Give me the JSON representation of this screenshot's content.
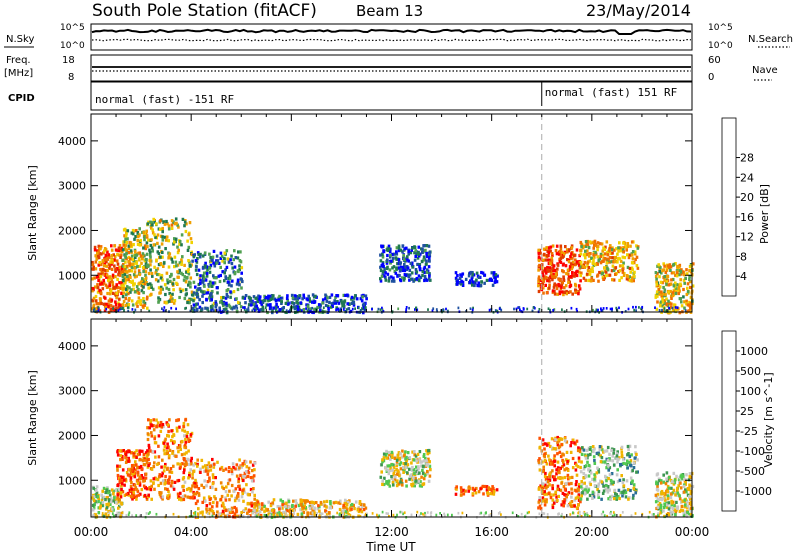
{
  "header": {
    "station": "South Pole Station (fitACF)",
    "beam": "Beam 13",
    "date": "23/May/2014"
  },
  "params": {
    "nsky_label": "N.Sky",
    "nsearch_label": "N.Search",
    "left_ticks": [
      "10^5",
      "10^0"
    ],
    "right_ticks": [
      "10^5",
      "10^0"
    ],
    "freq_label_1": "Freq.",
    "freq_label_2": "[MHz]",
    "freq_ticks": [
      "18",
      "8"
    ],
    "nave_label": "Nave",
    "nave_ticks": [
      "60",
      "0"
    ],
    "cpid_label": "CPID",
    "cpid_segments": [
      "normal (fast) -151 RF",
      "normal (fast) 151 RF"
    ],
    "cpid_switch_hour": 18
  },
  "colors": {
    "power": [
      "#0000ff",
      "#1e50a0",
      "#1e7850",
      "#50a050",
      "#f0d200",
      "#f0a000",
      "#f06e00",
      "#e03c00",
      "#ff0000"
    ],
    "velocity": [
      "#ff0000",
      "#ff5000",
      "#f08200",
      "#f0b400",
      "#c8c8c8",
      "#50c850",
      "#3c9650",
      "#286e96",
      "#0028b4"
    ]
  },
  "chart_data": [
    {
      "type": "heatmap",
      "panel": "power",
      "x_axis": {
        "range_hours": [
          0,
          24
        ],
        "tick_labels": [
          "00:00",
          "04:00",
          "08:00",
          "12:00",
          "16:00",
          "20:00",
          "00:00"
        ],
        "label": "Time UT"
      },
      "y_axis": {
        "range_km": [
          180,
          4600
        ],
        "tick_labels": [
          "1000",
          "2000",
          "3000",
          "4000"
        ],
        "label": "Slant Range [km]"
      },
      "colorbar": {
        "label": "Power [dB]",
        "range": [
          0,
          32
        ],
        "tick_labels": [
          "4",
          "8",
          "12",
          "16",
          "20",
          "24",
          "28"
        ]
      },
      "regions": [
        {
          "t": [
            0.0,
            1.2
          ],
          "r": [
            200,
            1700
          ],
          "level": 0.75
        },
        {
          "t": [
            1.2,
            2.2
          ],
          "r": [
            300,
            2100
          ],
          "level": 0.5
        },
        {
          "t": [
            2.2,
            4.0
          ],
          "r": [
            400,
            2300
          ],
          "level": 0.45
        },
        {
          "t": [
            4.0,
            6.0
          ],
          "r": [
            200,
            1600
          ],
          "level": 0.25
        },
        {
          "t": [
            6.0,
            11.0
          ],
          "r": [
            200,
            600
          ],
          "level": 0.15
        },
        {
          "t": [
            11.5,
            13.5
          ],
          "r": [
            900,
            1700
          ],
          "level": 0.15
        },
        {
          "t": [
            14.5,
            16.2
          ],
          "r": [
            800,
            1100
          ],
          "level": 0.1
        },
        {
          "t": [
            17.8,
            19.5
          ],
          "r": [
            600,
            1700
          ],
          "level": 0.8
        },
        {
          "t": [
            19.5,
            21.8
          ],
          "r": [
            900,
            1800
          ],
          "level": 0.6
        },
        {
          "t": [
            22.5,
            24.0
          ],
          "r": [
            200,
            1300
          ],
          "level": 0.55
        }
      ]
    },
    {
      "type": "heatmap",
      "panel": "velocity",
      "x_axis": {
        "range_hours": [
          0,
          24
        ],
        "tick_labels": [
          "00:00",
          "04:00",
          "08:00",
          "12:00",
          "16:00",
          "20:00",
          "00:00"
        ],
        "label": "Time UT"
      },
      "y_axis": {
        "range_km": [
          180,
          4600
        ],
        "tick_labels": [
          "1000",
          "2000",
          "3000",
          "4000"
        ],
        "label": "Slant Range [km]"
      },
      "colorbar": {
        "label": "Velocity [m s^-1]",
        "range": [
          -1500,
          1500
        ],
        "tick_labels": [
          "-1000",
          "-500",
          "-100",
          "-25",
          "25",
          "100",
          "500",
          "1000"
        ]
      },
      "regions": [
        {
          "t": [
            0.0,
            1.2
          ],
          "r": [
            200,
            900
          ],
          "level": 0.55
        },
        {
          "t": [
            1.0,
            2.2
          ],
          "r": [
            600,
            1700
          ],
          "level": 0.2
        },
        {
          "t": [
            2.2,
            4.0
          ],
          "r": [
            600,
            2400
          ],
          "level": 0.25
        },
        {
          "t": [
            4.0,
            6.5
          ],
          "r": [
            200,
            1500
          ],
          "level": 0.3
        },
        {
          "t": [
            6.5,
            11.0
          ],
          "r": [
            200,
            600
          ],
          "level": 0.4
        },
        {
          "t": [
            11.5,
            13.5
          ],
          "r": [
            900,
            1700
          ],
          "level": 0.5
        },
        {
          "t": [
            14.5,
            16.2
          ],
          "r": [
            700,
            900
          ],
          "level": 0.2
        },
        {
          "t": [
            17.8,
            19.5
          ],
          "r": [
            400,
            2000
          ],
          "level": 0.25
        },
        {
          "t": [
            19.5,
            21.8
          ],
          "r": [
            600,
            1800
          ],
          "level": 0.6
        },
        {
          "t": [
            22.5,
            24.0
          ],
          "r": [
            200,
            1200
          ],
          "level": 0.5
        }
      ]
    }
  ]
}
